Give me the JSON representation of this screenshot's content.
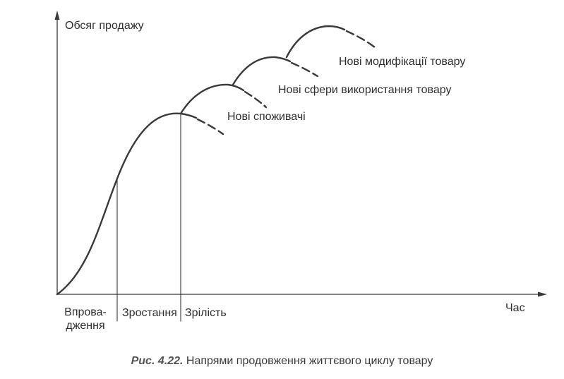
{
  "axes": {
    "y_label": "Обсяг продажу",
    "x_label": "Час"
  },
  "stages": {
    "introduction": "Впрова-дження",
    "growth": "Зростання",
    "maturity": "Зрілість"
  },
  "extensions": {
    "new_consumers": "Нові споживачі",
    "new_uses": "Нові сфери використання товару",
    "new_modifications": "Нові модифікації товару"
  },
  "caption": {
    "number": "Рис. 4.22.",
    "text": "Напрями продовження життєвого циклу товару"
  },
  "colors": {
    "line": "#3a3a3a"
  }
}
